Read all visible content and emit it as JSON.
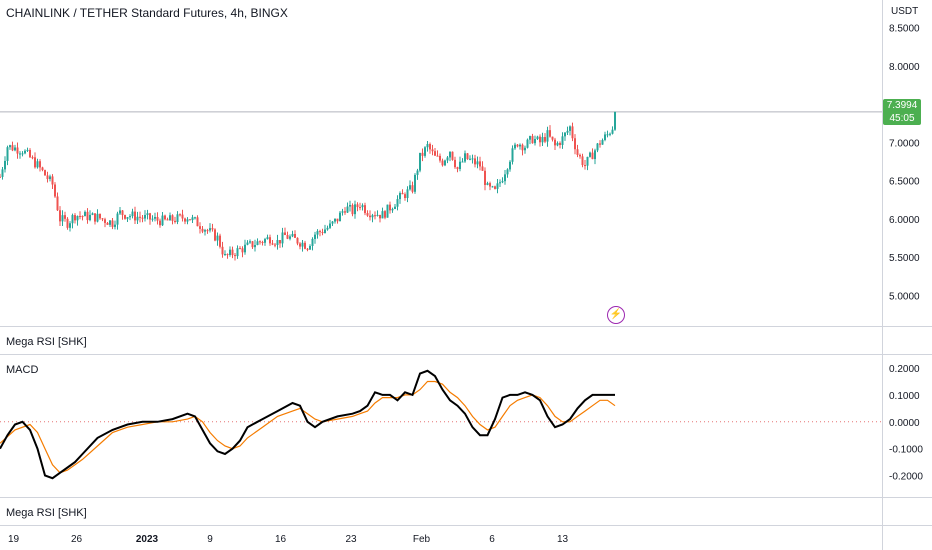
{
  "header": {
    "title": "CHAINLINK / TETHER Standard Futures, 4h, BINGX",
    "currency": "USDT"
  },
  "price_badge": {
    "price": "7.3994",
    "countdown": "45:05"
  },
  "panes": {
    "rsi_label_top": "Mega RSI [SHK]",
    "macd_label": "MACD",
    "rsi_label_bottom": "Mega RSI [SHK]"
  },
  "icons": {
    "flash": "lightning-icon"
  },
  "colors": {
    "up": "#26a69a",
    "down": "#ef5350",
    "macd": "#000000",
    "signal": "#f57c00",
    "zero": "#e57373",
    "badge": "#4caf50"
  },
  "chart_data": [
    {
      "type": "candlestick",
      "title": "CHAINLINK / TETHER Standard Futures, 4h, BINGX",
      "ylabel": "USDT",
      "ylim": [
        4.6,
        8.6
      ],
      "yticks": [
        "8.5000",
        "8.0000",
        "7.5000",
        "7.0000",
        "6.5000",
        "6.0000",
        "5.5000",
        "5.0000"
      ],
      "last_price": 7.3994,
      "path": [
        [
          0,
          6.55
        ],
        [
          1,
          6.95
        ],
        [
          3,
          6.9
        ],
        [
          5,
          6.7
        ],
        [
          7,
          6.45
        ],
        [
          8,
          6.0
        ],
        [
          9,
          5.95
        ],
        [
          10,
          6.05
        ],
        [
          13,
          6.02
        ],
        [
          15,
          5.95
        ],
        [
          16,
          6.08
        ],
        [
          17,
          6.05
        ],
        [
          20,
          6.0
        ],
        [
          22,
          5.97
        ],
        [
          25,
          6.03
        ],
        [
          27,
          5.9
        ],
        [
          29,
          5.75
        ],
        [
          30,
          5.5
        ],
        [
          31,
          5.55
        ],
        [
          32,
          5.6
        ],
        [
          34,
          5.68
        ],
        [
          36,
          5.75
        ],
        [
          37,
          5.7
        ],
        [
          38,
          5.78
        ],
        [
          40,
          5.7
        ],
        [
          41,
          5.65
        ],
        [
          42,
          5.8
        ],
        [
          44,
          5.9
        ],
        [
          45,
          6.0
        ],
        [
          46,
          6.15
        ],
        [
          47,
          6.1
        ],
        [
          48,
          6.2
        ],
        [
          49,
          6.1
        ],
        [
          51,
          6.05
        ],
        [
          53,
          6.25
        ],
        [
          55,
          6.4
        ],
        [
          56,
          6.8
        ],
        [
          57,
          6.95
        ],
        [
          58,
          6.8
        ],
        [
          59,
          6.75
        ],
        [
          60,
          6.9
        ],
        [
          61,
          6.65
        ],
        [
          62,
          6.8
        ],
        [
          64,
          6.7
        ],
        [
          65,
          6.4
        ],
        [
          66,
          6.35
        ],
        [
          67,
          6.55
        ],
        [
          68,
          6.8
        ],
        [
          69,
          7.0
        ],
        [
          70,
          6.95
        ],
        [
          71,
          7.05
        ],
        [
          72,
          7.0
        ],
        [
          73,
          7.1
        ],
        [
          74,
          6.95
        ],
        [
          75,
          7.05
        ],
        [
          76,
          7.2
        ],
        [
          77,
          6.85
        ],
        [
          78,
          6.7
        ],
        [
          79,
          6.85
        ],
        [
          80,
          7.0
        ],
        [
          81,
          7.1
        ],
        [
          82,
          7.25
        ],
        [
          82.3,
          7.3994
        ]
      ]
    },
    {
      "type": "line",
      "title": "MACD",
      "ylim": [
        -0.28,
        0.245
      ],
      "yticks": [
        "0.2000",
        "0.1000",
        "0.0000",
        "-0.1000",
        "-0.2000"
      ],
      "series": [
        {
          "name": "MACD",
          "color": "#000000",
          "x": [
            0,
            1,
            2,
            3,
            4,
            5,
            6,
            7,
            8,
            9,
            10,
            11,
            13,
            15,
            17,
            19,
            21,
            23,
            25,
            26,
            27,
            28,
            29,
            30,
            31,
            32,
            33,
            35,
            37,
            39,
            40,
            41,
            42,
            43,
            45,
            47,
            48,
            49,
            50,
            51,
            52,
            53,
            54,
            55,
            56,
            57,
            58,
            59,
            60,
            61,
            62,
            63,
            64,
            65,
            66,
            67,
            68,
            69,
            70,
            71,
            72,
            73,
            74,
            75,
            76,
            77,
            78,
            79,
            80,
            81,
            82
          ],
          "values": [
            -0.1,
            -0.05,
            -0.01,
            0.0,
            -0.03,
            -0.1,
            -0.2,
            -0.21,
            -0.19,
            -0.17,
            -0.15,
            -0.12,
            -0.06,
            -0.03,
            -0.01,
            0.0,
            0.0,
            0.01,
            0.03,
            0.02,
            -0.03,
            -0.08,
            -0.11,
            -0.12,
            -0.1,
            -0.07,
            -0.02,
            0.01,
            0.04,
            0.07,
            0.06,
            0.0,
            -0.02,
            0.0,
            0.02,
            0.03,
            0.04,
            0.06,
            0.11,
            0.1,
            0.1,
            0.08,
            0.11,
            0.1,
            0.18,
            0.19,
            0.17,
            0.12,
            0.08,
            0.06,
            0.03,
            -0.02,
            -0.05,
            -0.05,
            0.01,
            0.09,
            0.1,
            0.1,
            0.11,
            0.1,
            0.08,
            0.02,
            -0.02,
            -0.01,
            0.01,
            0.05,
            0.08,
            0.1,
            0.1,
            0.1,
            0.1
          ]
        },
        {
          "name": "Signal",
          "color": "#f57c00",
          "x": [
            0,
            2,
            4,
            5,
            6,
            7,
            8,
            9,
            10,
            11,
            13,
            15,
            17,
            19,
            21,
            23,
            25,
            26,
            27,
            28,
            29,
            30,
            31,
            32,
            33,
            35,
            37,
            39,
            40,
            41,
            42,
            43,
            45,
            47,
            48,
            49,
            50,
            51,
            52,
            53,
            54,
            55,
            56,
            57,
            58,
            59,
            60,
            61,
            62,
            63,
            64,
            65,
            66,
            67,
            68,
            69,
            70,
            71,
            72,
            73,
            74,
            75,
            76,
            77,
            78,
            79,
            80,
            81,
            82
          ],
          "values": [
            -0.08,
            -0.03,
            -0.01,
            -0.04,
            -0.1,
            -0.16,
            -0.19,
            -0.18,
            -0.16,
            -0.14,
            -0.09,
            -0.04,
            -0.02,
            -0.01,
            0.0,
            0.0,
            0.01,
            0.02,
            0.0,
            -0.04,
            -0.07,
            -0.09,
            -0.1,
            -0.09,
            -0.06,
            -0.02,
            0.02,
            0.04,
            0.05,
            0.03,
            0.01,
            0.0,
            0.01,
            0.02,
            0.03,
            0.04,
            0.07,
            0.09,
            0.09,
            0.09,
            0.1,
            0.1,
            0.12,
            0.15,
            0.15,
            0.14,
            0.11,
            0.09,
            0.06,
            0.02,
            -0.01,
            -0.03,
            -0.02,
            0.02,
            0.06,
            0.08,
            0.09,
            0.1,
            0.09,
            0.06,
            0.02,
            0.0,
            0.0,
            0.02,
            0.04,
            0.06,
            0.08,
            0.08,
            0.06
          ]
        }
      ]
    }
  ],
  "time_axis": {
    "labels": [
      "19",
      "26",
      "2023",
      "9",
      "16",
      "23",
      "Feb",
      "6",
      "13"
    ],
    "label_values": [
      1.8,
      10.2,
      19.6,
      28.0,
      37.4,
      46.8,
      56.2,
      65.6,
      75.0
    ],
    "bold": [
      "2023"
    ]
  }
}
